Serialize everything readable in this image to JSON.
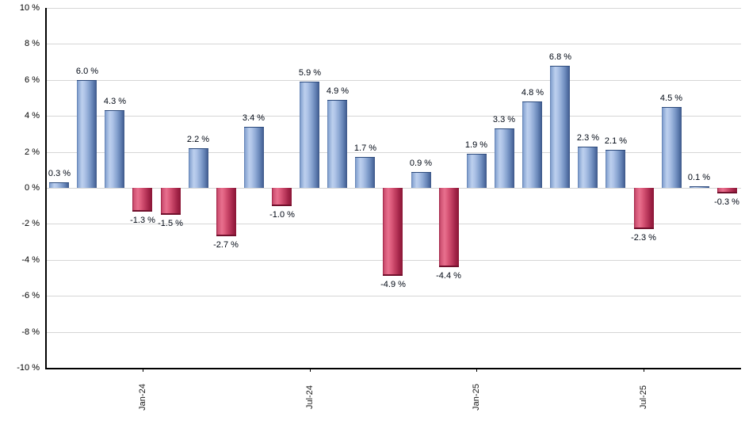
{
  "chart_data": {
    "type": "bar",
    "title": "",
    "xlabel": "",
    "ylabel": "",
    "values": [
      0.3,
      6.0,
      4.3,
      -1.3,
      -1.5,
      2.2,
      -2.7,
      3.4,
      -1.0,
      5.9,
      4.9,
      1.7,
      -4.9,
      0.9,
      -4.4,
      1.9,
      3.3,
      4.8,
      6.8,
      2.3,
      2.1,
      -2.3,
      4.5,
      0.1,
      -0.3
    ],
    "bar_labels": [
      "0.3 %",
      "6.0 %",
      "4.3 %",
      "-1.3 %",
      "-1.5 %",
      "2.2 %",
      "-2.7 %",
      "3.4 %",
      "-1.0 %",
      "5.9 %",
      "4.9 %",
      "1.7 %",
      "-4.9 %",
      "0.9 %",
      "-4.4 %",
      "1.9 %",
      "3.3 %",
      "4.8 %",
      "6.8 %",
      "2.3 %",
      "2.1 %",
      "-2.3 %",
      "4.5 %",
      "0.1 %",
      "-0.3 %"
    ],
    "x_ticks": [
      {
        "label": "Jan-24",
        "index": 3
      },
      {
        "label": "Jul-24",
        "index": 9
      },
      {
        "label": "Jan-25",
        "index": 15
      },
      {
        "label": "Jul-25",
        "index": 21
      }
    ],
    "y_ticks": [
      {
        "value": 10,
        "label": "10 %"
      },
      {
        "value": 8,
        "label": "8 %"
      },
      {
        "value": 6,
        "label": "6 %"
      },
      {
        "value": 4,
        "label": "4 %"
      },
      {
        "value": 2,
        "label": "2 %"
      },
      {
        "value": 0,
        "label": "0 %"
      },
      {
        "value": -2,
        "label": "-2 %"
      },
      {
        "value": -4,
        "label": "-4 %"
      },
      {
        "value": -6,
        "label": "-6 %"
      },
      {
        "value": -8,
        "label": "-8 %"
      },
      {
        "value": -10,
        "label": "-10 %"
      }
    ],
    "ylim": [
      -10,
      10
    ],
    "grid": true,
    "legend": false,
    "colors": {
      "positive_bar": "#8aa6d2",
      "negative_bar": "#c23f62",
      "gridline": "#d6d6d6",
      "axis": "#000000",
      "value_label": "#000814"
    }
  }
}
